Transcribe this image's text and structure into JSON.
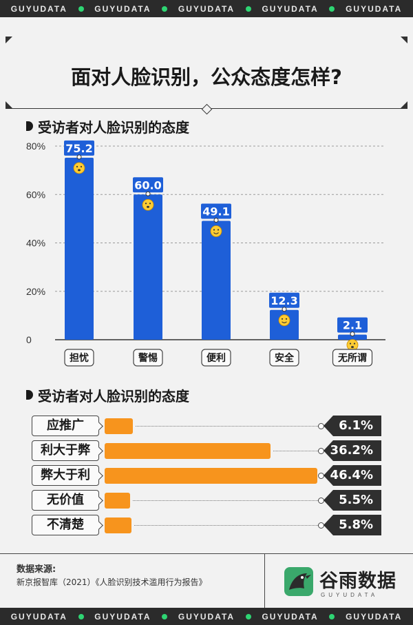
{
  "brand_strip": [
    "GUYUDATA",
    "GUYUDATA",
    "GUYUDATA",
    "GUYUDATA",
    "GUYUDATA"
  ],
  "title": "面对人脸识别，公众态度怎样?",
  "colors": {
    "bar_blue": "#1e5fd8",
    "bar_orange": "#f7941d",
    "dark": "#2f2f2f",
    "accent_green": "#2ed573",
    "background": "#f2f2f2"
  },
  "chart_data": [
    {
      "type": "bar",
      "title": "受访者对人脸识别的态度",
      "categories": [
        "担忧",
        "警惕",
        "便利",
        "安全",
        "无所谓"
      ],
      "values": [
        75.2,
        60.0,
        49.1,
        12.3,
        2.1
      ],
      "value_labels": [
        "75.2",
        "60.0",
        "49.1",
        "12.3",
        "2.1"
      ],
      "icons": [
        "fearful-face-icon",
        "fearful-face-icon",
        "smiling-face-icon",
        "smiling-face-icon",
        "thinking-face-icon"
      ],
      "yticks": [
        "80%",
        "60%",
        "40%",
        "20%",
        "0"
      ],
      "ytick_values": [
        80,
        60,
        40,
        20,
        0
      ],
      "ylim": [
        0,
        80
      ],
      "grid": true,
      "xlabel": "",
      "ylabel": ""
    },
    {
      "type": "bar",
      "orientation": "horizontal",
      "title": "受访者对人脸识别的态度",
      "categories": [
        "应推广",
        "利大于弊",
        "弊大于利",
        "无价值",
        "不清楚"
      ],
      "values": [
        6.1,
        36.2,
        46.4,
        5.5,
        5.8
      ],
      "value_labels": [
        "6.1%",
        "36.2%",
        "46.4%",
        "5.5%",
        "5.8%"
      ],
      "xlim": [
        0,
        46.4
      ]
    }
  ],
  "source": {
    "label": "数据来源:",
    "text": "新京报智库（2021）《人脸识别技术滥用行为报告》"
  },
  "logo": {
    "name": "谷雨数据",
    "sub": "GUYUDATA"
  }
}
